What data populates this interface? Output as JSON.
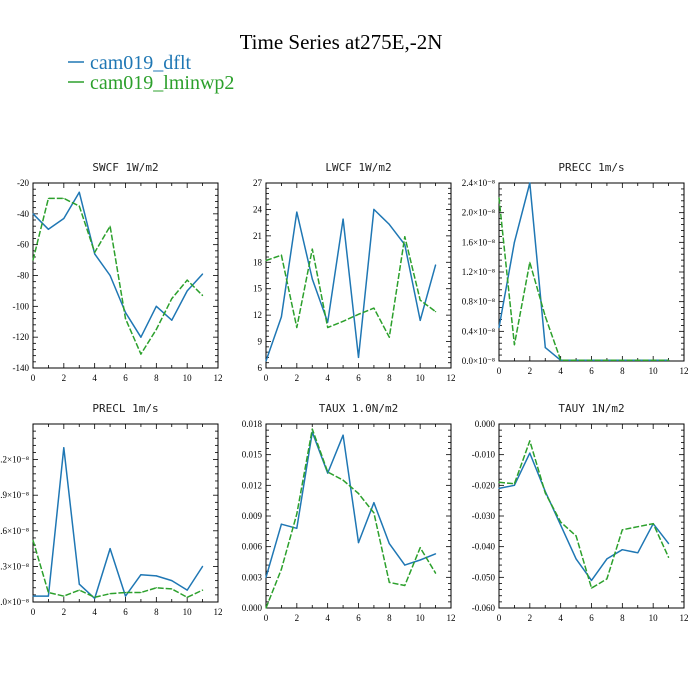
{
  "figure": {
    "title": "Time Series at275E,-2N"
  },
  "legend": {
    "placement": "top-left",
    "entries": [
      {
        "name": "cam019_dflt",
        "color": "#1f77b4"
      },
      {
        "name": "cam019_lminwp2",
        "color": "#2ca02c"
      }
    ]
  },
  "colors": {
    "dflt": "#1f77b4",
    "lminwp2": "#2ca02c"
  },
  "chart_data": [
    {
      "type": "line",
      "title": "SWCF   1W/m2",
      "x": [
        0,
        1,
        2,
        3,
        4,
        5,
        6,
        7,
        8,
        9,
        10,
        11
      ],
      "xlim": [
        0,
        12
      ],
      "xticks": [
        "0",
        "2",
        "4",
        "6",
        "8",
        "10",
        "12"
      ],
      "ylim": [
        -140,
        -20
      ],
      "yticks": [
        "-140",
        "-120",
        "-100",
        "-80",
        "-60",
        "-40",
        "-20"
      ],
      "grid": false,
      "series": [
        {
          "name": "cam019_dflt",
          "values": [
            -40,
            -50,
            -43,
            -26,
            -66,
            -80,
            -104,
            -120,
            -100,
            -109,
            -90,
            -79
          ]
        },
        {
          "name": "cam019_lminwp2",
          "values": [
            -70,
            -30,
            -30,
            -35,
            -65,
            -48,
            -108,
            -131,
            -115,
            -95,
            -83,
            -93
          ]
        }
      ]
    },
    {
      "type": "line",
      "title": "LWCF   1W/m2",
      "x": [
        0,
        1,
        2,
        3,
        4,
        5,
        6,
        7,
        8,
        9,
        10,
        11
      ],
      "xlim": [
        0,
        12
      ],
      "xticks": [
        "0",
        "2",
        "4",
        "6",
        "8",
        "10",
        "12"
      ],
      "ylim": [
        6,
        27
      ],
      "yticks": [
        "6",
        "9",
        "12",
        "15",
        "18",
        "21",
        "24",
        "27"
      ],
      "grid": false,
      "series": [
        {
          "name": "cam019_dflt",
          "values": [
            6.8,
            11.8,
            23.7,
            16.1,
            11.2,
            22.9,
            7.2,
            24.0,
            22.3,
            20.0,
            11.4,
            17.7
          ]
        },
        {
          "name": "cam019_lminwp2",
          "values": [
            18.2,
            18.8,
            10.6,
            19.5,
            10.6,
            11.3,
            12.1,
            12.8,
            9.5,
            20.9,
            13.7,
            12.4
          ]
        }
      ]
    },
    {
      "type": "line",
      "title": "PRECC   1m/s",
      "x": [
        0,
        1,
        2,
        3,
        4,
        5,
        6,
        7,
        8,
        9,
        10,
        11
      ],
      "xlim": [
        0,
        12
      ],
      "xticks": [
        "0",
        "2",
        "4",
        "6",
        "8",
        "10",
        "12"
      ],
      "ylim": [
        0,
        2.4
      ],
      "yticks": [
        "0.0×10⁻⁸",
        "0.4×10⁻⁸",
        "0.8×10⁻⁸",
        "1.2×10⁻⁸",
        "1.6×10⁻⁸",
        "2.0×10⁻⁸",
        "2.4×10⁻⁸"
      ],
      "grid": false,
      "series": [
        {
          "name": "cam019_dflt",
          "values": [
            0.45,
            1.6,
            2.4,
            0.18,
            0.01,
            0.01,
            0.01,
            0.01,
            0.01,
            0.01,
            0.01,
            0.01
          ]
        },
        {
          "name": "cam019_lminwp2",
          "values": [
            2.2,
            0.22,
            1.33,
            0.6,
            0.01,
            0.01,
            0.01,
            0.01,
            0.01,
            0.01,
            0.01,
            0.01
          ]
        }
      ]
    },
    {
      "type": "line",
      "title": "PRECL   1m/s",
      "x": [
        0,
        1,
        2,
        3,
        4,
        5,
        6,
        7,
        8,
        9,
        10,
        11
      ],
      "xlim": [
        0,
        12
      ],
      "xticks": [
        "0",
        "2",
        "4",
        "6",
        "8",
        "10",
        "12"
      ],
      "ylim": [
        0,
        1.5
      ],
      "yticks": [
        ".0×10⁻⁸",
        ".3×10⁻⁸",
        ".6×10⁻⁸",
        ".9×10⁻⁸",
        ".2×10⁻⁸"
      ],
      "ytick_values": [
        0,
        0.3,
        0.6,
        0.9,
        1.2
      ],
      "grid": false,
      "series": [
        {
          "name": "cam019_dflt",
          "values": [
            0.05,
            0.05,
            1.3,
            0.15,
            0.03,
            0.45,
            0.05,
            0.23,
            0.22,
            0.18,
            0.1,
            0.3
          ]
        },
        {
          "name": "cam019_lminwp2",
          "values": [
            0.52,
            0.08,
            0.05,
            0.1,
            0.04,
            0.07,
            0.08,
            0.08,
            0.12,
            0.11,
            0.04,
            0.1
          ]
        }
      ]
    },
    {
      "type": "line",
      "title": "TAUX   1.0N/m2",
      "x": [
        0,
        1,
        2,
        3,
        4,
        5,
        6,
        7,
        8,
        9,
        10,
        11
      ],
      "xlim": [
        0,
        12
      ],
      "xticks": [
        "0",
        "2",
        "4",
        "6",
        "8",
        "10",
        "12"
      ],
      "ylim": [
        0,
        0.018
      ],
      "yticks": [
        "0.000",
        "0.003",
        "0.006",
        "0.009",
        "0.012",
        "0.015",
        "0.018"
      ],
      "grid": false,
      "series": [
        {
          "name": "cam019_dflt",
          "values": [
            0.003,
            0.0082,
            0.0078,
            0.0172,
            0.0132,
            0.0169,
            0.0064,
            0.0103,
            0.0063,
            0.0042,
            0.0047,
            0.0053
          ]
        },
        {
          "name": "cam019_lminwp2",
          "values": [
            0.0,
            0.0038,
            0.0092,
            0.0175,
            0.0133,
            0.0125,
            0.0112,
            0.0093,
            0.0025,
            0.0022,
            0.0059,
            0.0034
          ]
        }
      ]
    },
    {
      "type": "line",
      "title": "TAUY   1N/m2",
      "x": [
        0,
        1,
        2,
        3,
        4,
        5,
        6,
        7,
        8,
        9,
        10,
        11
      ],
      "xlim": [
        0,
        12
      ],
      "xticks": [
        "0",
        "2",
        "4",
        "6",
        "8",
        "10",
        "12"
      ],
      "ylim": [
        -0.06,
        0.0
      ],
      "yticks": [
        "-0.060",
        "-0.050",
        "-0.040",
        "-0.030",
        "-0.020",
        "-0.010",
        "0.000"
      ],
      "grid": false,
      "series": [
        {
          "name": "cam019_dflt",
          "values": [
            -0.021,
            -0.02,
            -0.0095,
            -0.022,
            -0.033,
            -0.044,
            -0.051,
            -0.044,
            -0.041,
            -0.042,
            -0.0325,
            -0.039
          ]
        },
        {
          "name": "cam019_lminwp2",
          "values": [
            -0.019,
            -0.0195,
            -0.0055,
            -0.0225,
            -0.032,
            -0.0365,
            -0.0535,
            -0.0505,
            -0.0345,
            -0.0335,
            -0.0325,
            -0.0435
          ]
        }
      ]
    }
  ]
}
